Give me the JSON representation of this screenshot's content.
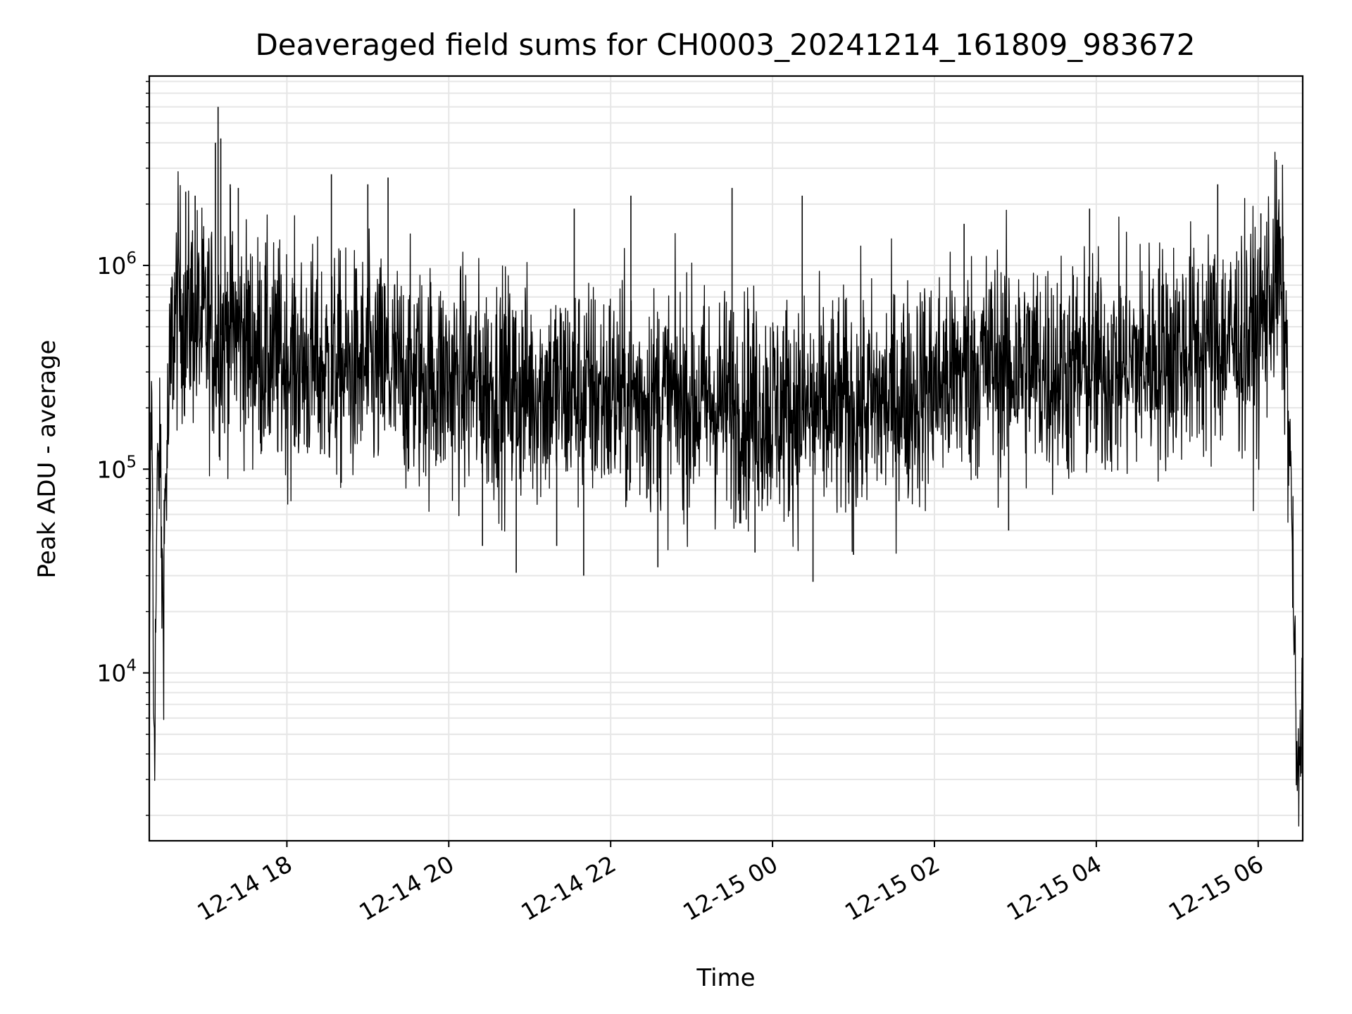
{
  "chart_data": {
    "type": "line",
    "title": "Deaveraged field sums for CH0003_20241214_161809_983672",
    "xlabel": "Time",
    "ylabel": "Peak ADU - average",
    "yscale": "log",
    "grid": "on",
    "x_ticks": [
      {
        "t": "2024-12-14T18:00",
        "label": "12-14 18"
      },
      {
        "t": "2024-12-14T20:00",
        "label": "12-14 20"
      },
      {
        "t": "2024-12-14T22:00",
        "label": "12-14 22"
      },
      {
        "t": "2024-12-15T00:00",
        "label": "12-15 00"
      },
      {
        "t": "2024-12-15T02:00",
        "label": "12-15 02"
      },
      {
        "t": "2024-12-15T04:00",
        "label": "12-15 04"
      },
      {
        "t": "2024-12-15T06:00",
        "label": "12-15 06"
      }
    ],
    "y_ticks": [
      {
        "value": 10000,
        "base": "10",
        "exp": "4"
      },
      {
        "value": 100000,
        "base": "10",
        "exp": "5"
      },
      {
        "value": 1000000,
        "base": "10",
        "exp": "6"
      }
    ],
    "xlim": [
      "2024-12-14T16:18",
      "2024-12-15T06:33"
    ],
    "ylim": [
      1500,
      8500000
    ],
    "line_color": "#000000",
    "series": [
      {
        "x": [
          "2024-12-14T16:18",
          "2024-12-14T16:19",
          "2024-12-14T16:20",
          "2024-12-14T16:21",
          "2024-12-14T16:22",
          "2024-12-14T16:24",
          "2024-12-14T16:26",
          "2024-12-14T16:28",
          "2024-12-14T16:30",
          "2024-12-14T16:35",
          "2024-12-14T16:40",
          "2024-12-14T16:45",
          "2024-12-14T16:50",
          "2024-12-14T16:55",
          "2024-12-14T17:00",
          "2024-12-14T17:10",
          "2024-12-14T17:20",
          "2024-12-14T17:30",
          "2024-12-14T17:40",
          "2024-12-14T17:50",
          "2024-12-14T18:00",
          "2024-12-14T18:20",
          "2024-12-14T18:40",
          "2024-12-14T19:00",
          "2024-12-14T19:20",
          "2024-12-14T19:40",
          "2024-12-14T20:00",
          "2024-12-14T20:20",
          "2024-12-14T20:40",
          "2024-12-14T21:00",
          "2024-12-14T21:20",
          "2024-12-14T21:40",
          "2024-12-14T22:00",
          "2024-12-14T22:20",
          "2024-12-14T22:40",
          "2024-12-14T23:00",
          "2024-12-14T23:20",
          "2024-12-14T23:40",
          "2024-12-15T00:00",
          "2024-12-15T00:20",
          "2024-12-15T00:40",
          "2024-12-15T01:00",
          "2024-12-15T01:20",
          "2024-12-15T01:40",
          "2024-12-15T02:00",
          "2024-12-15T02:20",
          "2024-12-15T02:40",
          "2024-12-15T03:00",
          "2024-12-15T03:20",
          "2024-12-15T03:40",
          "2024-12-15T04:00",
          "2024-12-15T04:20",
          "2024-12-15T04:40",
          "2024-12-15T05:00",
          "2024-12-15T05:20",
          "2024-12-15T05:40",
          "2024-12-15T06:00",
          "2024-12-15T06:10",
          "2024-12-15T06:15",
          "2024-12-15T06:20",
          "2024-12-15T06:25",
          "2024-12-15T06:28",
          "2024-12-15T06:30",
          "2024-12-15T06:32",
          "2024-12-15T06:33"
        ],
        "y": [
          6000,
          110000,
          300000,
          8000,
          5500,
          90000,
          120000,
          20000,
          80000,
          450000,
          700000,
          550000,
          600000,
          520000,
          480000,
          450000,
          500000,
          420000,
          380000,
          350000,
          340000,
          320000,
          300000,
          310000,
          290000,
          280000,
          270000,
          260000,
          250000,
          245000,
          240000,
          235000,
          230000,
          225000,
          220000,
          215000,
          210000,
          205000,
          200000,
          195000,
          190000,
          200000,
          210000,
          230000,
          260000,
          300000,
          330000,
          320000,
          310000,
          300000,
          305000,
          320000,
          350000,
          380000,
          400000,
          420000,
          440000,
          800000,
          900000,
          500000,
          60000,
          5000,
          2500,
          5000,
          9000
        ],
        "noise_amplitude_decades": 0.28
      }
    ],
    "spikes": [
      {
        "x": "2024-12-14T16:45",
        "y": 2300000
      },
      {
        "x": "2024-12-14T16:52",
        "y": 2200000
      },
      {
        "x": "2024-12-14T17:07",
        "y": 4000000
      },
      {
        "x": "2024-12-14T17:09",
        "y": 6000000
      },
      {
        "x": "2024-12-14T17:11",
        "y": 4200000
      },
      {
        "x": "2024-12-14T17:18",
        "y": 2500000
      },
      {
        "x": "2024-12-14T17:24",
        "y": 2400000
      },
      {
        "x": "2024-12-14T18:33",
        "y": 2800000
      },
      {
        "x": "2024-12-14T19:00",
        "y": 2500000
      },
      {
        "x": "2024-12-14T19:15",
        "y": 2700000
      },
      {
        "x": "2024-12-14T21:33",
        "y": 1900000
      },
      {
        "x": "2024-12-14T22:15",
        "y": 2200000
      },
      {
        "x": "2024-12-14T23:30",
        "y": 2400000
      },
      {
        "x": "2024-12-15T00:22",
        "y": 2200000
      },
      {
        "x": "2024-12-15T02:22",
        "y": 1600000
      },
      {
        "x": "2024-12-15T03:55",
        "y": 1900000
      },
      {
        "x": "2024-12-15T05:30",
        "y": 2500000
      },
      {
        "x": "2024-12-15T06:02",
        "y": 1800000
      }
    ],
    "dips": [
      {
        "x": "2024-12-14T20:25",
        "y": 42000
      },
      {
        "x": "2024-12-14T20:50",
        "y": 31000
      },
      {
        "x": "2024-12-14T21:20",
        "y": 42000
      },
      {
        "x": "2024-12-14T21:40",
        "y": 30000
      },
      {
        "x": "2024-12-14T22:35",
        "y": 33000
      },
      {
        "x": "2024-12-14T23:47",
        "y": 39000
      },
      {
        "x": "2024-12-15T00:30",
        "y": 28000
      },
      {
        "x": "2024-12-15T01:00",
        "y": 38000
      },
      {
        "x": "2024-12-15T02:55",
        "y": 50000
      }
    ]
  }
}
